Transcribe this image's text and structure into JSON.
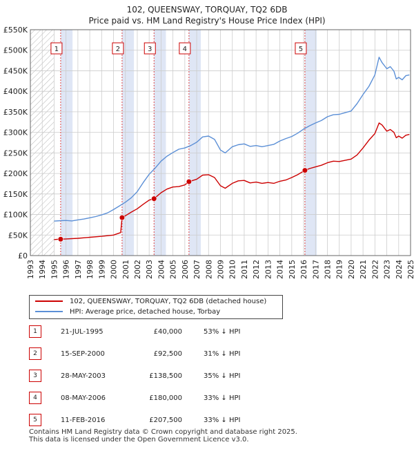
{
  "chart_data": {
    "type": "line",
    "title": "102, QUEENSWAY, TORQUAY, TQ2 6DB",
    "subtitle": "Price paid vs. HM Land Registry's House Price Index (HPI)",
    "xlim": [
      1993.0,
      2025.0
    ],
    "ylim": [
      0,
      550000
    ],
    "y_ticks": [
      {
        "value": 0,
        "label": "£0"
      },
      {
        "value": 50000,
        "label": "£50K"
      },
      {
        "value": 100000,
        "label": "£100K"
      },
      {
        "value": 150000,
        "label": "£150K"
      },
      {
        "value": 200000,
        "label": "£200K"
      },
      {
        "value": 250000,
        "label": "£250K"
      },
      {
        "value": 300000,
        "label": "£300K"
      },
      {
        "value": 350000,
        "label": "£350K"
      },
      {
        "value": 400000,
        "label": "£400K"
      },
      {
        "value": 450000,
        "label": "£450K"
      },
      {
        "value": 500000,
        "label": "£500K"
      },
      {
        "value": 550000,
        "label": "£550K"
      }
    ],
    "x_ticks": [
      "1993",
      "1994",
      "1995",
      "1996",
      "1997",
      "1998",
      "1999",
      "2000",
      "2001",
      "2002",
      "2003",
      "2004",
      "2005",
      "2006",
      "2007",
      "2008",
      "2009",
      "2010",
      "2011",
      "2012",
      "2013",
      "2014",
      "2015",
      "2016",
      "2017",
      "2018",
      "2019",
      "2020",
      "2021",
      "2022",
      "2023",
      "2024",
      "2025"
    ],
    "grid": true,
    "hatch_before": 1995.0,
    "series": [
      {
        "name": "102, QUEENSWAY, TORQUAY, TQ2 6DB (detached house)",
        "color": "#cc0000",
        "points": [
          [
            1995.0,
            39000
          ],
          [
            1995.55,
            40000
          ],
          [
            1996.0,
            40500
          ],
          [
            1997.0,
            42000
          ],
          [
            1998.0,
            44500
          ],
          [
            1999.0,
            47000
          ],
          [
            2000.0,
            50000
          ],
          [
            2000.6,
            56000
          ],
          [
            2000.72,
            92500
          ],
          [
            2001.0,
            97000
          ],
          [
            2001.5,
            106000
          ],
          [
            2002.0,
            114000
          ],
          [
            2002.5,
            125000
          ],
          [
            2003.0,
            135000
          ],
          [
            2003.41,
            138500
          ],
          [
            2004.0,
            153000
          ],
          [
            2004.5,
            162000
          ],
          [
            2005.0,
            167000
          ],
          [
            2005.5,
            168000
          ],
          [
            2006.0,
            172000
          ],
          [
            2006.35,
            180000
          ],
          [
            2007.0,
            186000
          ],
          [
            2007.5,
            196000
          ],
          [
            2008.0,
            197000
          ],
          [
            2008.5,
            190000
          ],
          [
            2009.0,
            170000
          ],
          [
            2009.4,
            164000
          ],
          [
            2010.0,
            176000
          ],
          [
            2010.5,
            182000
          ],
          [
            2011.0,
            183000
          ],
          [
            2011.5,
            177000
          ],
          [
            2012.0,
            179000
          ],
          [
            2012.5,
            176000
          ],
          [
            2013.0,
            178000
          ],
          [
            2013.5,
            176000
          ],
          [
            2014.0,
            181000
          ],
          [
            2014.5,
            184000
          ],
          [
            2015.0,
            190000
          ],
          [
            2015.5,
            197000
          ],
          [
            2016.11,
            207500
          ],
          [
            2016.5,
            212000
          ],
          [
            2017.0,
            216000
          ],
          [
            2017.5,
            220000
          ],
          [
            2018.0,
            226000
          ],
          [
            2018.5,
            230000
          ],
          [
            2019.0,
            229000
          ],
          [
            2019.5,
            232000
          ],
          [
            2020.0,
            235000
          ],
          [
            2020.5,
            245000
          ],
          [
            2021.0,
            262000
          ],
          [
            2021.5,
            281000
          ],
          [
            2022.0,
            297000
          ],
          [
            2022.35,
            323000
          ],
          [
            2022.6,
            318000
          ],
          [
            2023.0,
            303000
          ],
          [
            2023.3,
            307000
          ],
          [
            2023.6,
            300000
          ],
          [
            2023.8,
            287000
          ],
          [
            2024.0,
            291000
          ],
          [
            2024.3,
            286000
          ],
          [
            2024.6,
            293000
          ],
          [
            2024.9,
            295000
          ]
        ]
      },
      {
        "name": "HPI: Average price, detached house, Torbay",
        "color": "#5b8fd6",
        "points": [
          [
            1995.0,
            84000
          ],
          [
            1995.5,
            85000
          ],
          [
            1996.0,
            85500
          ],
          [
            1996.5,
            84500
          ],
          [
            1997.0,
            87000
          ],
          [
            1997.5,
            89000
          ],
          [
            1998.0,
            92000
          ],
          [
            1998.5,
            95000
          ],
          [
            1999.0,
            99000
          ],
          [
            1999.5,
            104000
          ],
          [
            2000.0,
            112000
          ],
          [
            2000.5,
            121000
          ],
          [
            2001.0,
            130000
          ],
          [
            2001.5,
            141000
          ],
          [
            2002.0,
            156000
          ],
          [
            2002.5,
            178000
          ],
          [
            2003.0,
            198000
          ],
          [
            2003.5,
            213000
          ],
          [
            2004.0,
            230000
          ],
          [
            2004.5,
            242000
          ],
          [
            2005.0,
            251000
          ],
          [
            2005.5,
            259000
          ],
          [
            2006.0,
            262000
          ],
          [
            2006.5,
            268000
          ],
          [
            2007.0,
            276000
          ],
          [
            2007.5,
            289000
          ],
          [
            2008.0,
            291000
          ],
          [
            2008.5,
            283000
          ],
          [
            2009.0,
            257000
          ],
          [
            2009.4,
            250000
          ],
          [
            2010.0,
            265000
          ],
          [
            2010.5,
            270000
          ],
          [
            2011.0,
            272000
          ],
          [
            2011.5,
            266000
          ],
          [
            2012.0,
            268000
          ],
          [
            2012.5,
            265000
          ],
          [
            2013.0,
            268000
          ],
          [
            2013.5,
            271000
          ],
          [
            2014.0,
            279000
          ],
          [
            2014.5,
            285000
          ],
          [
            2015.0,
            290000
          ],
          [
            2015.5,
            298000
          ],
          [
            2016.0,
            308000
          ],
          [
            2016.5,
            316000
          ],
          [
            2017.0,
            323000
          ],
          [
            2017.5,
            329000
          ],
          [
            2018.0,
            338000
          ],
          [
            2018.5,
            343000
          ],
          [
            2019.0,
            344000
          ],
          [
            2019.5,
            348000
          ],
          [
            2020.0,
            352000
          ],
          [
            2020.5,
            370000
          ],
          [
            2021.0,
            392000
          ],
          [
            2021.5,
            412000
          ],
          [
            2022.0,
            440000
          ],
          [
            2022.35,
            483000
          ],
          [
            2022.6,
            470000
          ],
          [
            2023.0,
            455000
          ],
          [
            2023.3,
            460000
          ],
          [
            2023.6,
            449000
          ],
          [
            2023.8,
            430000
          ],
          [
            2024.0,
            434000
          ],
          [
            2024.3,
            428000
          ],
          [
            2024.6,
            438000
          ],
          [
            2024.9,
            440000
          ]
        ]
      }
    ],
    "sales": [
      {
        "num": "1",
        "date": "21-JUL-1995",
        "price": "£40,000",
        "hpi": "53% ↓ HPI",
        "x": 1995.55,
        "y": 40000
      },
      {
        "num": "2",
        "date": "15-SEP-2000",
        "price": "£92,500",
        "hpi": "31% ↓ HPI",
        "x": 2000.72,
        "y": 92500
      },
      {
        "num": "3",
        "date": "28-MAY-2003",
        "price": "£138,500",
        "hpi": "35% ↓ HPI",
        "x": 2003.41,
        "y": 138500
      },
      {
        "num": "4",
        "date": "08-MAY-2006",
        "price": "£180,000",
        "hpi": "33% ↓ HPI",
        "x": 2006.35,
        "y": 180000
      },
      {
        "num": "5",
        "date": "11-FEB-2016",
        "price": "£207,500",
        "hpi": "33% ↓ HPI",
        "x": 2016.11,
        "y": 207500
      }
    ]
  },
  "legend": {
    "property_label": "102, QUEENSWAY, TORQUAY, TQ2 6DB (detached house)",
    "hpi_label": "HPI: Average price, detached house, Torbay"
  },
  "footer": {
    "line1": "Contains HM Land Registry data © Crown copyright and database right 2025.",
    "line2": "This data is licensed under the Open Government Licence v3.0."
  },
  "colors": {
    "property": "#cc0000",
    "hpi": "#5b8fd6",
    "band": "#dfe6f5",
    "grid": "#cccccc"
  }
}
